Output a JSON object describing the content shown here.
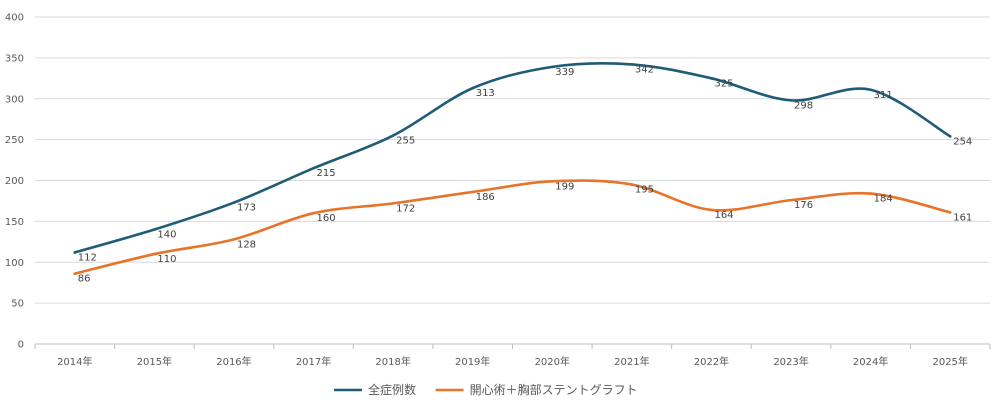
{
  "chart_data": {
    "type": "line",
    "title": "",
    "xlabel": "",
    "ylabel": "",
    "categories": [
      "2014年",
      "2015年",
      "2016年",
      "2017年",
      "2018年",
      "2019年",
      "2020年",
      "2021年",
      "2022年",
      "2023年",
      "2024年",
      "2025年"
    ],
    "ylim": [
      0,
      400
    ],
    "yticks": [
      0,
      50,
      100,
      150,
      200,
      250,
      300,
      350,
      400
    ],
    "grid": true,
    "legend_position": "bottom",
    "series": [
      {
        "name": "全症例数",
        "color": "#1f5c78",
        "values": [
          112,
          140,
          173,
          215,
          255,
          313,
          339,
          342,
          325,
          298,
          311,
          254
        ]
      },
      {
        "name": "開心術＋胸部ステントグラフト",
        "color": "#e8732a",
        "values": [
          86,
          110,
          128,
          160,
          172,
          186,
          199,
          195,
          164,
          176,
          184,
          161
        ]
      }
    ]
  }
}
